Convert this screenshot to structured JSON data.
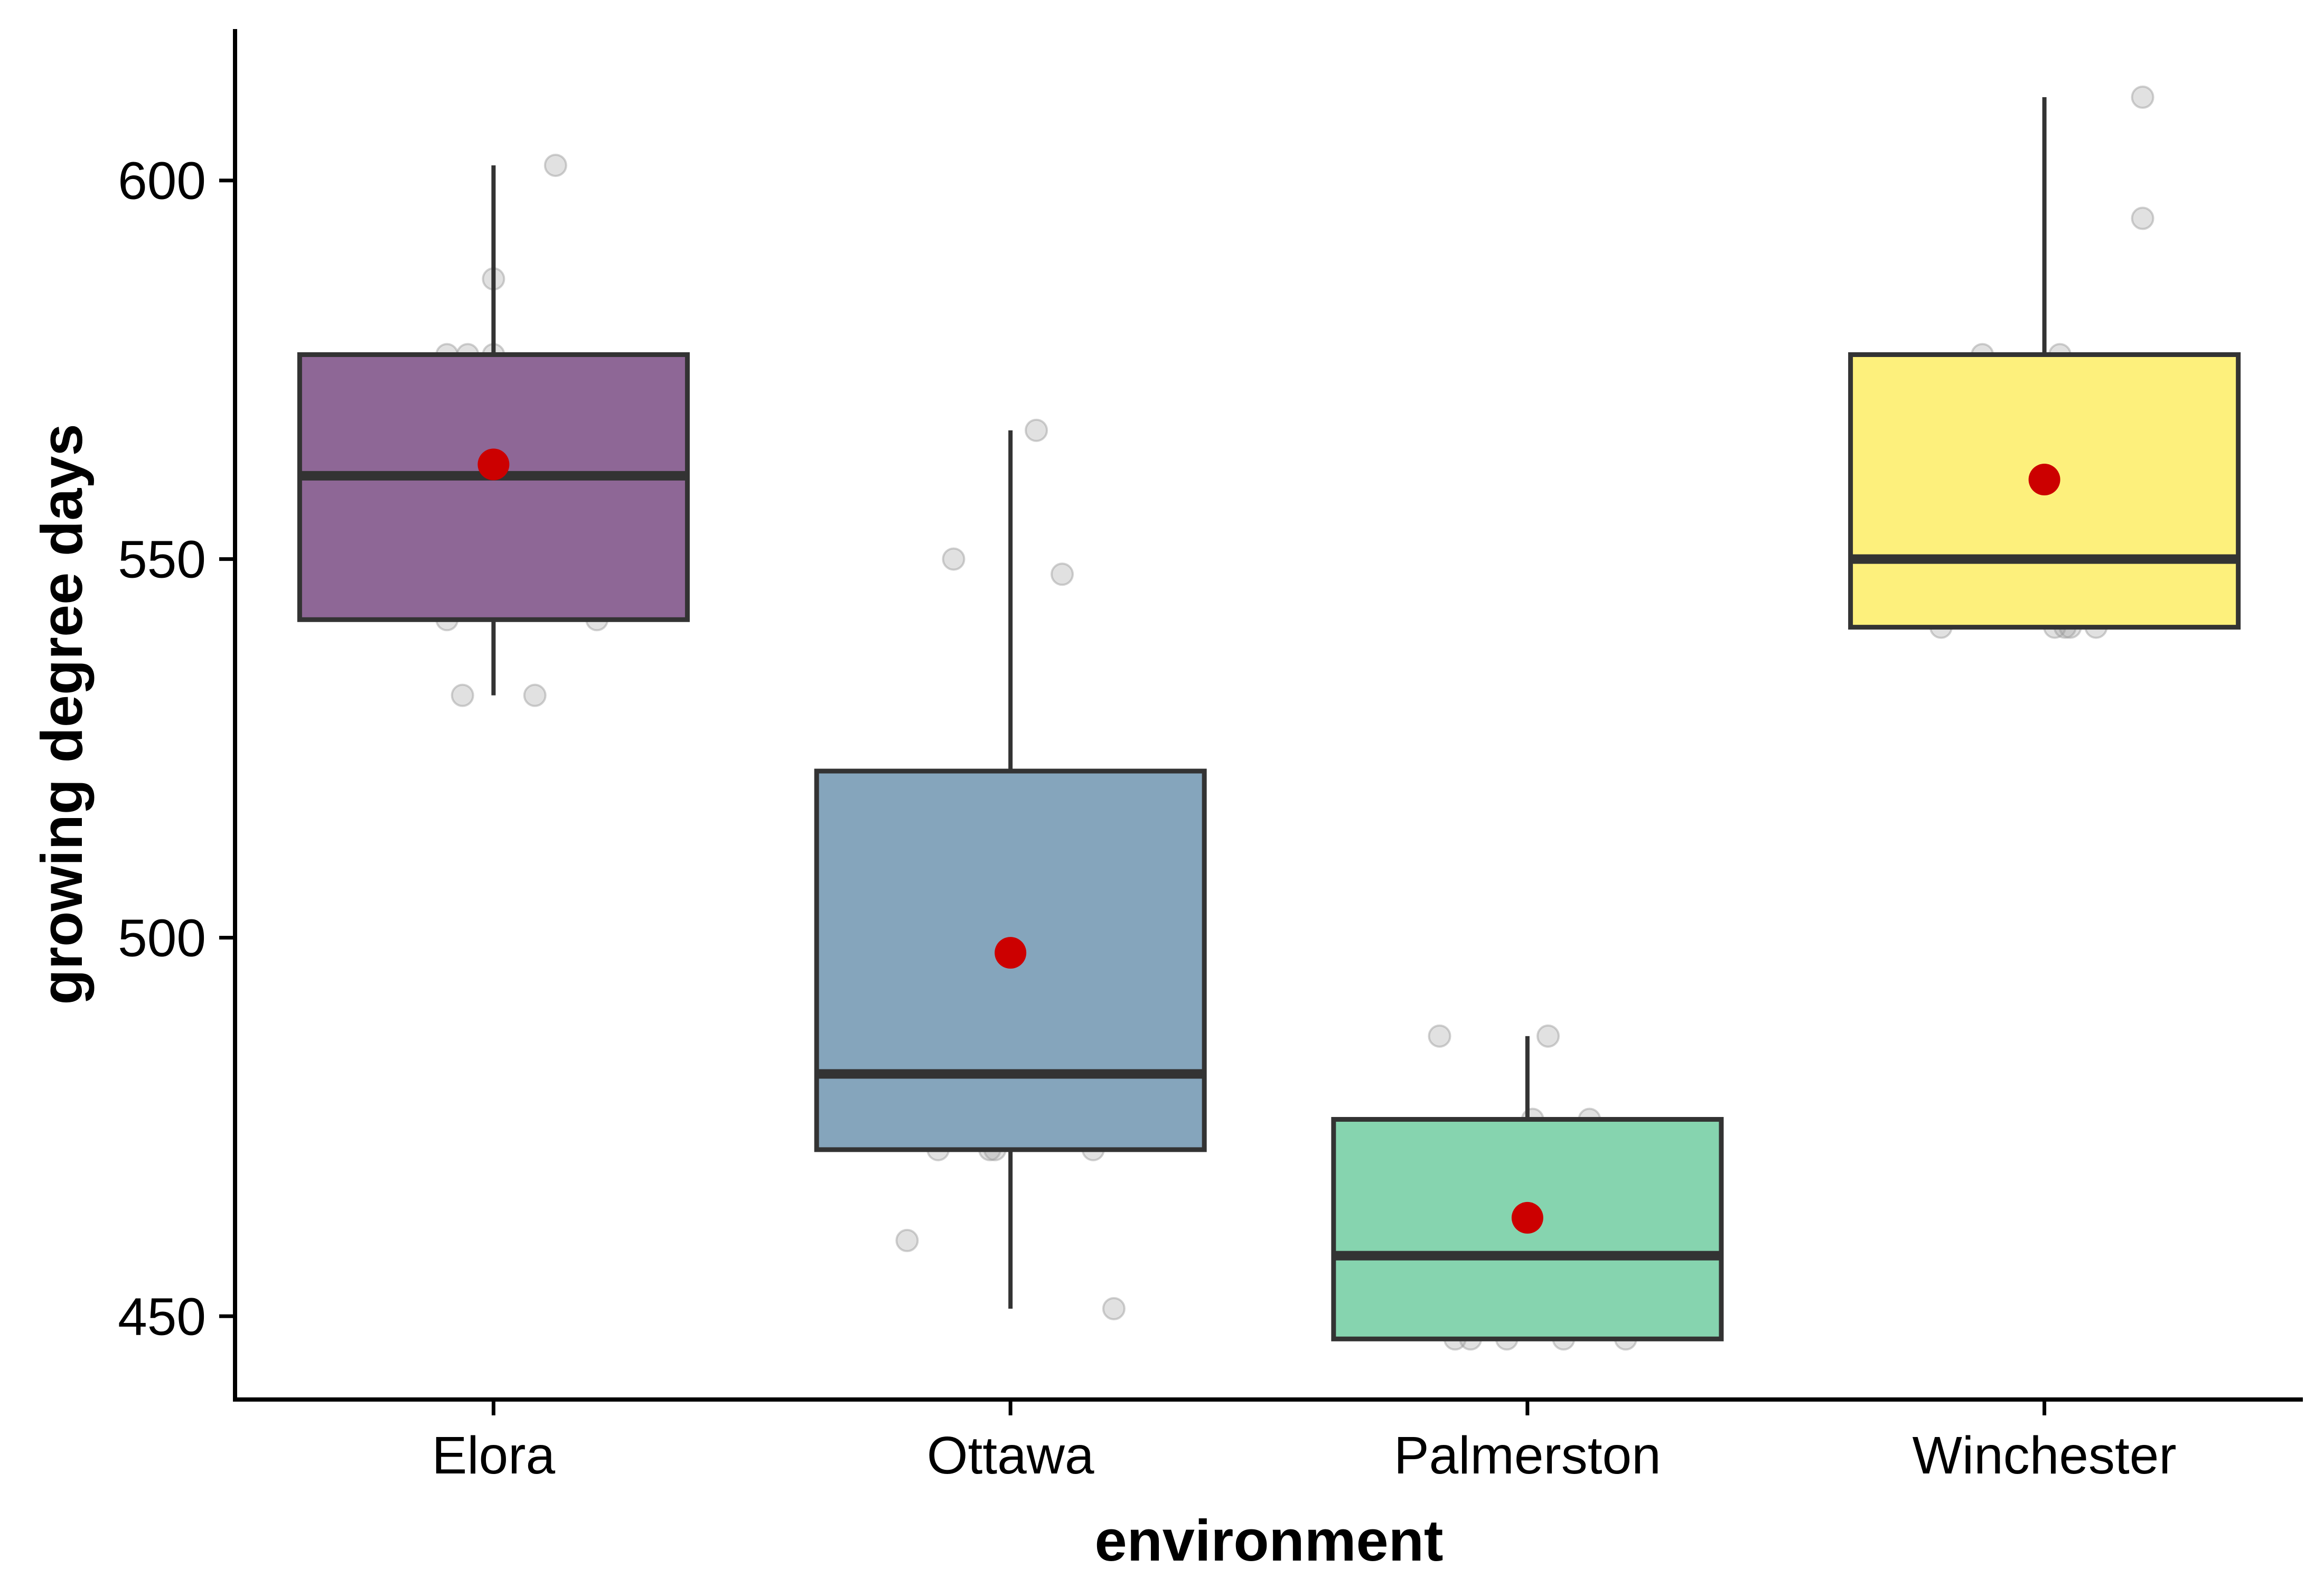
{
  "chart_data": {
    "type": "boxplot",
    "xlabel": "environment",
    "ylabel": "growing degree days",
    "ylim": [
      439,
      620
    ],
    "yticks": [
      450,
      500,
      550,
      600
    ],
    "grid": false,
    "legend": "none",
    "colors": {
      "box_stroke": "#333333",
      "mean_point": "#cc0000",
      "jitter_point": "#9a9a9a"
    },
    "groups": [
      {
        "name": "Elora",
        "fill": "#8e6796",
        "q1": 542,
        "median": 561,
        "q3": 577,
        "whisker_low": 532,
        "whisker_high": 602,
        "mean": 562.5,
        "points": [
          602,
          587,
          577,
          577,
          577,
          566,
          557,
          557,
          542,
          542,
          532,
          532
        ],
        "jitter": [
          0.12,
          0.0,
          -0.09,
          -0.05,
          0.0,
          -0.02,
          -0.18,
          -0.1,
          -0.09,
          0.2,
          -0.06,
          0.08
        ]
      },
      {
        "name": "Ottawa",
        "fill": "#85a5bc",
        "q1": 472,
        "median": 482,
        "q3": 522,
        "whisker_low": 451,
        "whisker_high": 567,
        "mean": 498,
        "points": [
          567,
          550,
          548,
          513,
          501,
          491,
          472,
          472,
          472,
          472,
          460,
          451
        ],
        "jitter": [
          0.05,
          -0.11,
          0.1,
          0.19,
          0.03,
          -0.15,
          -0.14,
          -0.04,
          -0.03,
          0.16,
          -0.2,
          0.2
        ]
      },
      {
        "name": "Palmerston",
        "fill": "#86d4af",
        "q1": 447,
        "median": 458,
        "q3": 476,
        "whisker_low": 447,
        "whisker_high": 487,
        "mean": 463,
        "points": [
          487,
          487,
          476,
          476,
          472,
          458,
          458,
          447,
          447,
          447,
          447,
          447
        ],
        "jitter": [
          -0.17,
          0.04,
          0.01,
          0.12,
          -0.06,
          0.02,
          0.12,
          -0.14,
          -0.11,
          -0.04,
          0.07,
          0.19
        ]
      },
      {
        "name": "Winchester",
        "fill": "#fdf07c",
        "q1": 541,
        "median": 550,
        "q3": 577,
        "whisker_low": 541,
        "whisker_high": 611,
        "mean": 560.5,
        "points": [
          611,
          595,
          577,
          577,
          559,
          559,
          541,
          541,
          541,
          541,
          541
        ],
        "jitter": [
          0.19,
          0.19,
          -0.12,
          0.03,
          -0.13,
          -0.04,
          -0.2,
          0.02,
          0.04,
          0.05,
          0.1
        ]
      }
    ]
  }
}
